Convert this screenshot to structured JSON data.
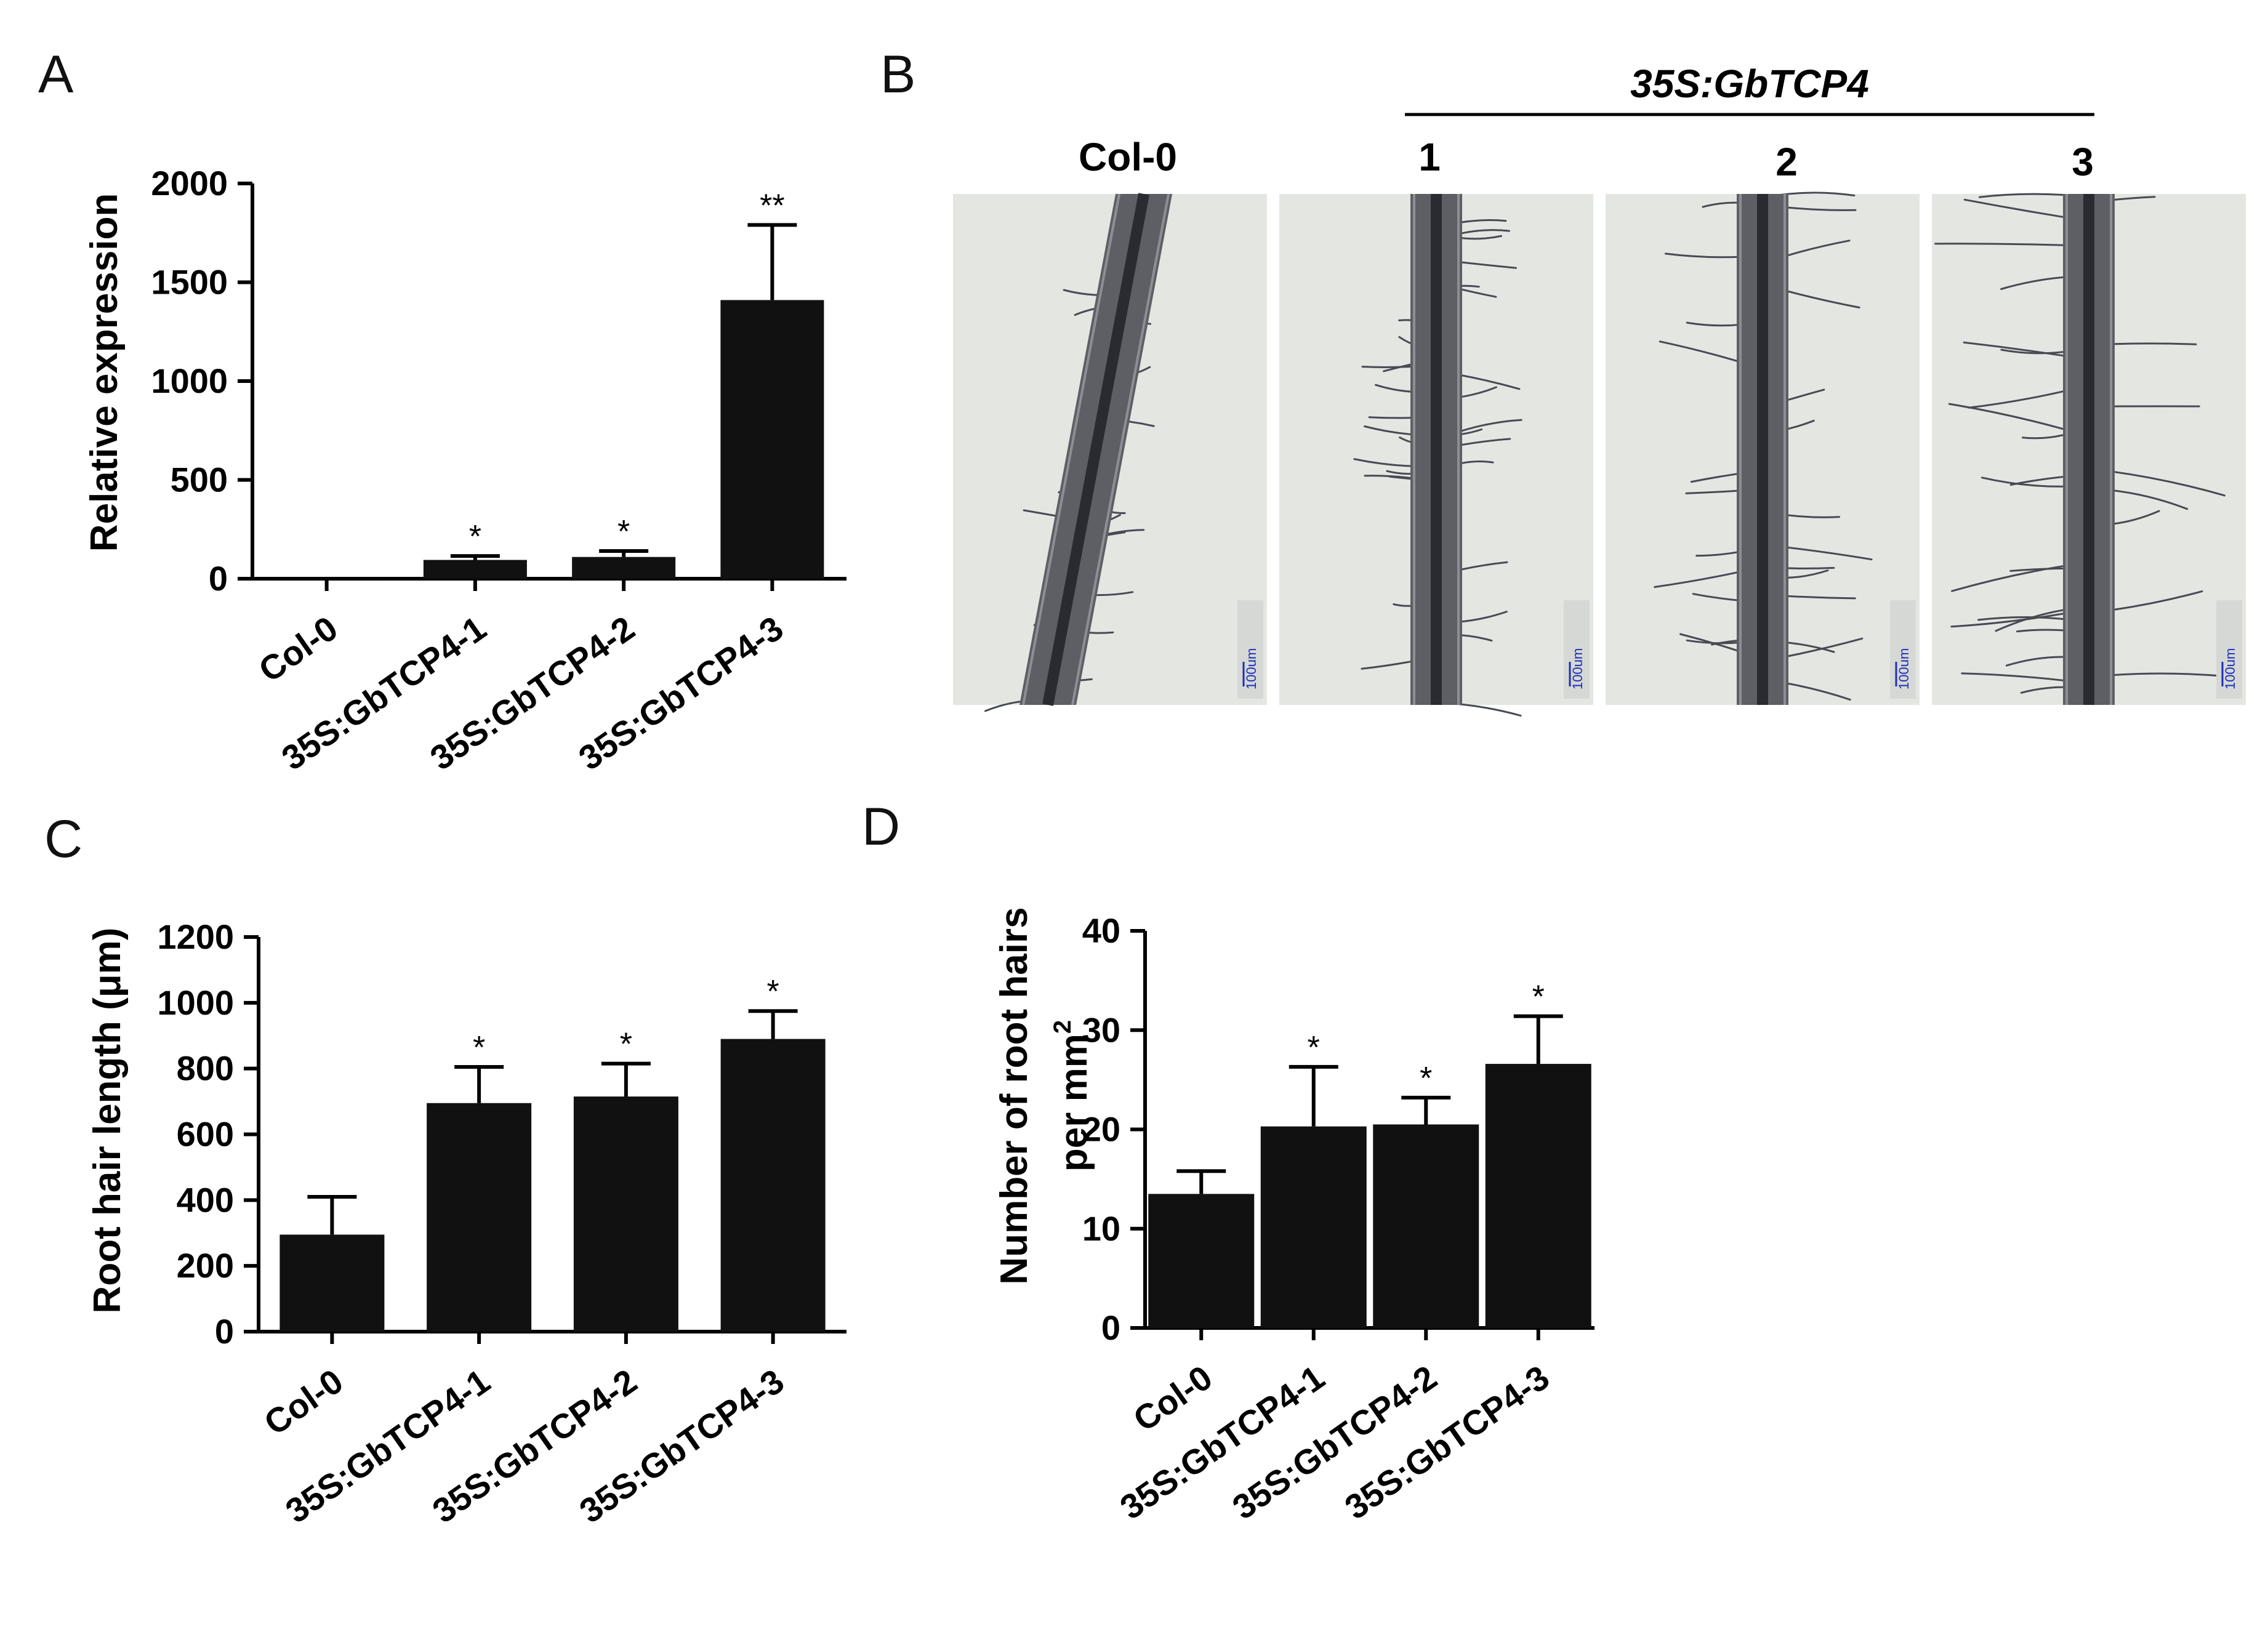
{
  "colors": {
    "bar": "#111111",
    "axis": "#000000",
    "photo_background": "#e4e6e2",
    "root_body": "#5d5f64",
    "root_core": "#2a2b30",
    "root_hair": "#474a52",
    "scale_bar": "#1d2fb8"
  },
  "chart_data": [
    {
      "id": "A",
      "panel_label": "A",
      "type": "bar",
      "categories": [
        "Col-0",
        "35S:GbTCP4-1",
        "35S:GbTCP4-2",
        "35S:GbTCP4-3"
      ],
      "values": [
        1,
        95,
        110,
        1410
      ],
      "errors": [
        0,
        20,
        30,
        380
      ],
      "significance": [
        "",
        "*",
        "*",
        "**"
      ],
      "ylabel": "Relative expression",
      "ylim": [
        0,
        2000
      ],
      "yticks": [
        0,
        500,
        1000,
        1500,
        2000
      ],
      "ytick_labels": [
        "0",
        "500",
        "1000",
        "1500",
        "2000"
      ]
    },
    {
      "id": "C",
      "panel_label": "C",
      "type": "bar",
      "categories": [
        "Col-0",
        "35S:GbTCP4-1",
        "35S:GbTCP4-2",
        "35S:GbTCP4-3"
      ],
      "values": [
        295,
        695,
        715,
        890
      ],
      "errors": [
        115,
        110,
        100,
        85
      ],
      "significance": [
        "",
        "*",
        "*",
        "*"
      ],
      "ylabel": "Root hair length (μm)",
      "ylim": [
        0,
        1200
      ],
      "yticks": [
        0,
        200,
        400,
        600,
        800,
        1000,
        1200
      ],
      "ytick_labels": [
        "0",
        "200",
        "400",
        "600",
        "800",
        "1000",
        "1200"
      ]
    },
    {
      "id": "D",
      "panel_label": "D",
      "type": "bar",
      "categories": [
        "Col-0",
        "35S:GbTCP4-1",
        "35S:GbTCP4-2",
        "35S:GbTCP4-3"
      ],
      "values": [
        13.5,
        20.3,
        20.5,
        26.6
      ],
      "errors": [
        2.3,
        6,
        2.7,
        4.8
      ],
      "significance": [
        "",
        "*",
        "*",
        "*"
      ],
      "ylabel_lines": [
        "Number of root hairs",
        "per mm"
      ],
      "ylabel_superscript": "2",
      "ylim": [
        0,
        40
      ],
      "yticks": [
        0,
        10,
        20,
        30,
        40
      ],
      "ytick_labels": [
        "0",
        "10",
        "20",
        "30",
        "40"
      ]
    }
  ],
  "micrographs": {
    "panel_label": "B",
    "group_label": "35S:GbTCP4",
    "images": [
      {
        "label": "Col-0",
        "scale_label": "100um"
      },
      {
        "label": "1",
        "scale_label": "100um"
      },
      {
        "label": "2",
        "scale_label": "100um"
      },
      {
        "label": "3",
        "scale_label": "100um"
      }
    ]
  }
}
